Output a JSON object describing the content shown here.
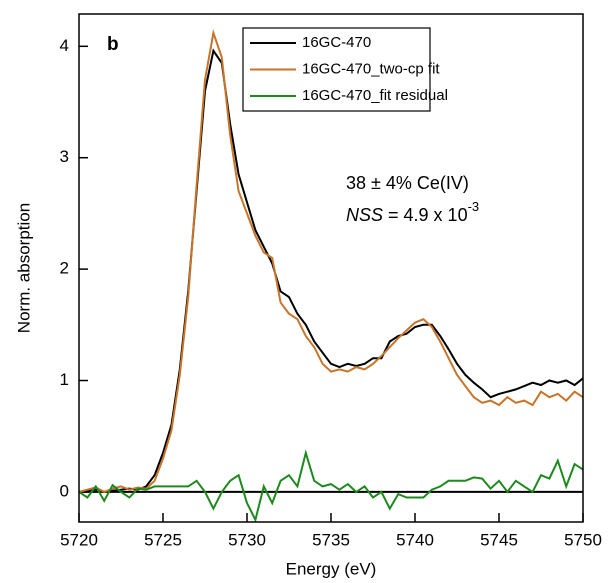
{
  "chart_data": {
    "type": "line",
    "panel_label": "b",
    "x_label": "Energy (eV)",
    "y_label": "Norm. absorption",
    "annotations": [
      "38 ± 4% Ce(IV)"
    ],
    "nss_label": {
      "symbol": "NSS",
      "text": " = 4.9 x 10",
      "exponent": "-3"
    },
    "x": [
      5720,
      5720.5,
      5721,
      5721.5,
      5722,
      5722.5,
      5723,
      5723.5,
      5724,
      5724.5,
      5725,
      5725.5,
      5726,
      5726.5,
      5727,
      5727.5,
      5728,
      5728.5,
      5729,
      5729.5,
      5730,
      5730.5,
      5731,
      5731.5,
      5732,
      5732.5,
      5733,
      5733.5,
      5734,
      5734.5,
      5735,
      5735.5,
      5736,
      5736.5,
      5737,
      5737.5,
      5738,
      5738.5,
      5739,
      5739.5,
      5740,
      5740.5,
      5741,
      5741.5,
      5742,
      5742.5,
      5743,
      5743.5,
      5744,
      5744.5,
      5745,
      5745.5,
      5746,
      5746.5,
      5747,
      5747.5,
      5748,
      5748.5,
      5749,
      5749.5,
      5750
    ],
    "series": [
      {
        "name": "16GC-470",
        "color": "#000000",
        "values": [
          0,
          0.01,
          0.02,
          0,
          0.01,
          0.02,
          0.03,
          0.02,
          0.05,
          0.15,
          0.35,
          0.6,
          1.1,
          1.8,
          2.7,
          3.6,
          3.96,
          3.85,
          3.3,
          2.85,
          2.6,
          2.35,
          2.2,
          2.05,
          1.8,
          1.75,
          1.6,
          1.5,
          1.35,
          1.25,
          1.15,
          1.12,
          1.15,
          1.13,
          1.15,
          1.2,
          1.2,
          1.35,
          1.4,
          1.42,
          1.48,
          1.5,
          1.5,
          1.4,
          1.28,
          1.15,
          1.05,
          0.98,
          0.92,
          0.85,
          0.88,
          0.9,
          0.92,
          0.95,
          0.98,
          0.96,
          1.0,
          0.98,
          1.0,
          0.96,
          1.02
        ]
      },
      {
        "name": "16GC-470_two-cp fit",
        "color": "#c8742a",
        "values": [
          0.0,
          0.02,
          0.04,
          0.0,
          0.03,
          0.05,
          0.02,
          0.04,
          0.03,
          0.1,
          0.3,
          0.55,
          1.05,
          1.75,
          2.75,
          3.7,
          4.12,
          3.9,
          3.2,
          2.7,
          2.5,
          2.3,
          2.15,
          2.1,
          1.7,
          1.6,
          1.55,
          1.4,
          1.3,
          1.15,
          1.08,
          1.1,
          1.08,
          1.12,
          1.1,
          1.15,
          1.22,
          1.3,
          1.38,
          1.45,
          1.52,
          1.55,
          1.48,
          1.35,
          1.2,
          1.05,
          0.95,
          0.85,
          0.8,
          0.82,
          0.78,
          0.85,
          0.8,
          0.82,
          0.78,
          0.9,
          0.85,
          0.88,
          0.82,
          0.9,
          0.85
        ]
      },
      {
        "name": "16GC-470_fit residual",
        "color": "#1e8a1e",
        "values": [
          0.0,
          -0.05,
          0.05,
          -0.08,
          0.06,
          0.0,
          -0.05,
          0.03,
          0.02,
          0.05,
          0.05,
          0.05,
          0.05,
          0.05,
          0.1,
          0.0,
          -0.15,
          0.0,
          0.1,
          0.15,
          -0.1,
          -0.25,
          0.05,
          -0.1,
          0.1,
          0.15,
          0.05,
          0.35,
          0.1,
          0.05,
          0.07,
          0.02,
          0.07,
          0.0,
          0.05,
          -0.05,
          0.0,
          -0.15,
          -0.02,
          -0.05,
          -0.05,
          -0.05,
          0.02,
          0.05,
          0.1,
          0.1,
          0.1,
          0.13,
          0.12,
          0.03,
          0.1,
          0.0,
          0.1,
          0.05,
          0.0,
          0.15,
          0.12,
          0.28,
          0.05,
          0.25,
          0.2
        ]
      }
    ],
    "xlim": [
      5720,
      5750
    ],
    "xticks": [
      5720,
      5725,
      5730,
      5735,
      5740,
      5745,
      5750
    ],
    "ylim": [
      -0.27,
      4.29
    ],
    "yticks": [
      0,
      1,
      2,
      3,
      4
    ],
    "zero_line": true,
    "legend": "top-center"
  }
}
